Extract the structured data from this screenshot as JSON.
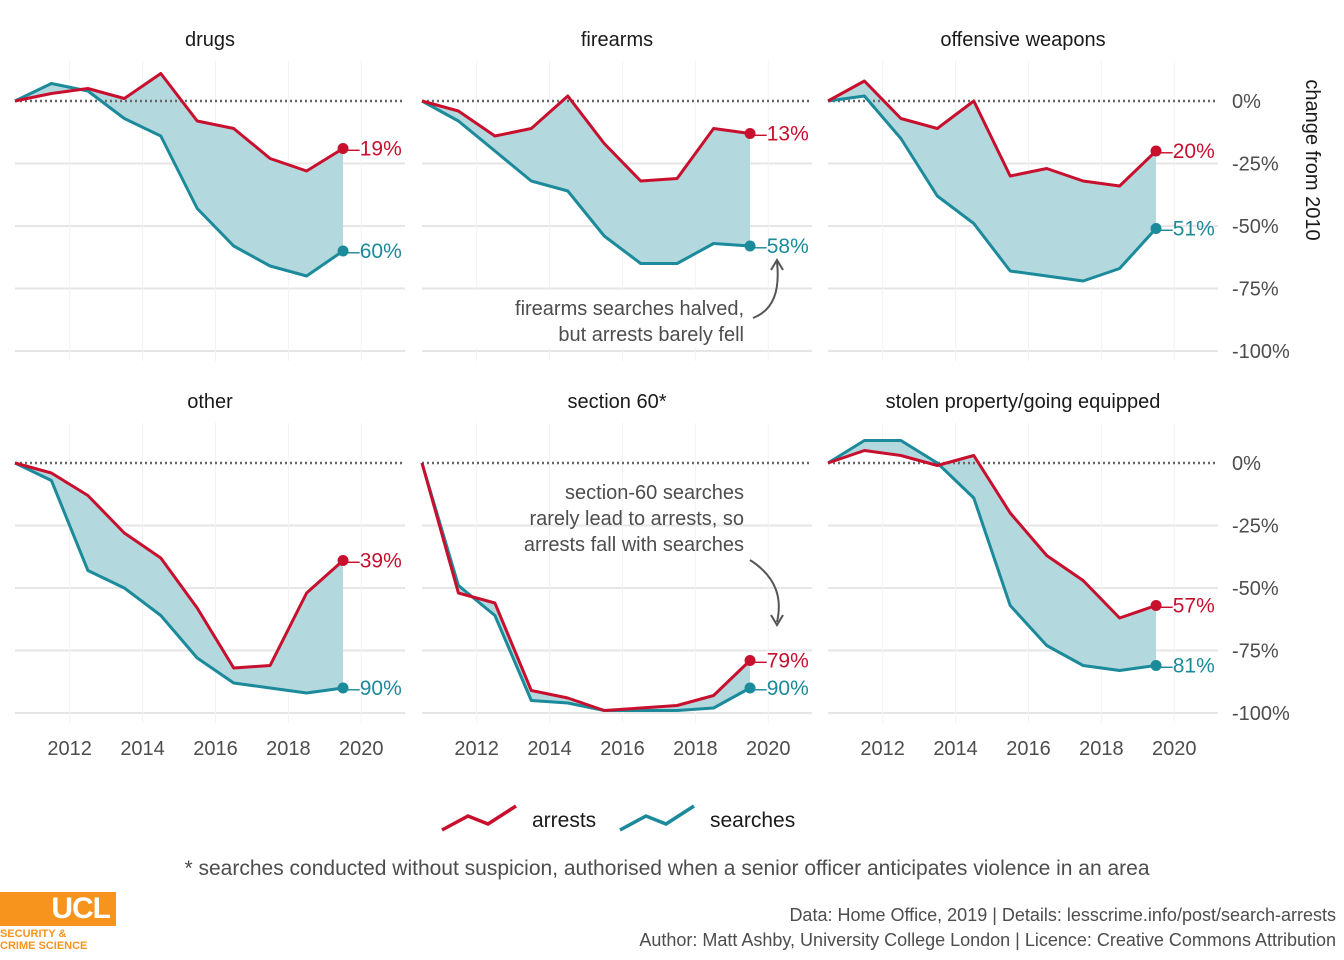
{
  "chart_data": {
    "type": "area",
    "y_axis_title": "change from 2010",
    "y_ticks": [
      0,
      -25,
      -50,
      -75,
      -100
    ],
    "y_tick_labels": [
      "0%",
      "-25%",
      "-50%",
      "-75%",
      "-100%"
    ],
    "ylim": [
      -104,
      16
    ],
    "xlim": [
      2010.5,
      2021.2
    ],
    "x_ticks": [
      2012,
      2014,
      2016,
      2018,
      2020
    ],
    "x_tick_labels": [
      "2012",
      "2014",
      "2016",
      "2018",
      "2020"
    ],
    "x": [
      2010.5,
      2011.5,
      2012.5,
      2013.5,
      2014.5,
      2015.5,
      2016.5,
      2017.5,
      2018.5,
      2019.5
    ],
    "legend": {
      "position": "bottom",
      "items": [
        "arrests",
        "searches"
      ]
    },
    "colors": {
      "arrests": "#c8102e",
      "searches": "#1b8a9a",
      "gap_fill": "#b3d8de",
      "zero_line": "#666666",
      "grid": "#e6e6e6"
    },
    "panels": [
      {
        "title": "drugs",
        "arrests": [
          0,
          3,
          5,
          1,
          11,
          -8,
          -11,
          -23,
          -28,
          -19
        ],
        "searches": [
          0,
          7,
          4,
          -7,
          -14,
          -43,
          -58,
          -66,
          -70,
          -60
        ],
        "arrests_end_label": "–19%",
        "searches_end_label": "–60%"
      },
      {
        "title": "firearms",
        "arrests": [
          0,
          -4,
          -14,
          -11,
          2,
          -17,
          -32,
          -31,
          -11,
          -13
        ],
        "searches": [
          0,
          -8,
          -20,
          -32,
          -36,
          -54,
          -65,
          -65,
          -57,
          -58
        ],
        "arrests_end_label": "–13%",
        "searches_end_label": "–58%"
      },
      {
        "title": "offensive weapons",
        "arrests": [
          0,
          8,
          -7,
          -11,
          0,
          -30,
          -27,
          -32,
          -34,
          -20
        ],
        "searches": [
          0,
          2,
          -15,
          -38,
          -49,
          -68,
          -70,
          -72,
          -67,
          -51
        ],
        "arrests_end_label": "–20%",
        "searches_end_label": "–51%"
      },
      {
        "title": "other",
        "arrests": [
          0,
          -4,
          -13,
          -28,
          -38,
          -58,
          -82,
          -81,
          -52,
          -39
        ],
        "searches": [
          0,
          -7,
          -43,
          -50,
          -61,
          -78,
          -88,
          -90,
          -92,
          -90
        ],
        "arrests_end_label": "–39%",
        "searches_end_label": "–90%"
      },
      {
        "title": "section 60*",
        "arrests": [
          0,
          -52,
          -56,
          -91,
          -94,
          -99,
          -98,
          -97,
          -93,
          -79
        ],
        "searches": [
          0,
          -49,
          -61,
          -95,
          -96,
          -99,
          -99,
          -99,
          -98,
          -90
        ],
        "arrests_end_label": "–79%",
        "searches_end_label": "–90%"
      },
      {
        "title": "stolen property/going equipped",
        "arrests": [
          0,
          5,
          3,
          -1,
          3,
          -20,
          -37,
          -47,
          -62,
          -57
        ],
        "searches": [
          0,
          9,
          9,
          0,
          -14,
          -57,
          -73,
          -81,
          -83,
          -81
        ],
        "arrests_end_label": "–57%",
        "searches_end_label": "–81%"
      }
    ],
    "annotations": [
      {
        "panel": "firearms",
        "text": [
          "firearms searches halved,",
          "but arrests barely fell"
        ]
      },
      {
        "panel": "section 60*",
        "text": [
          "section-60 searches",
          "rarely lead to arrests, so",
          "arrests fall with searches"
        ]
      }
    ],
    "footnote": "* searches conducted without suspicion, authorised when a senior officer anticipates violence in an area",
    "caption": [
      "Data: Home Office, 2019 |  Details: lesscrime.info/post/search-arrests",
      "Author: Matt Ashby, University College London |  Licence: Creative Commons Attribution"
    ]
  },
  "logo": {
    "main": "UCL",
    "sub": "SECURITY &\nCRIME SCIENCE"
  }
}
